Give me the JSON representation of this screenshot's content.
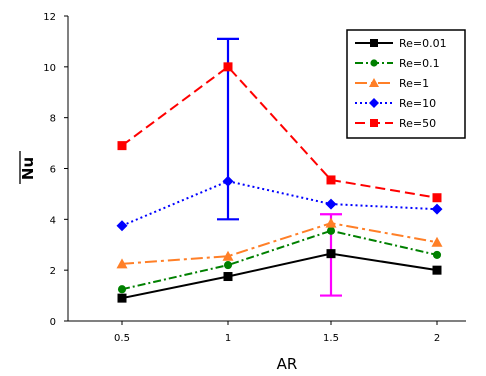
{
  "chart_data": {
    "type": "line",
    "title": "",
    "xlabel": "AR",
    "ylabel": "Nu",
    "x": [
      0.5,
      1,
      1.5,
      2
    ],
    "x_tick_labels": [
      "0.5",
      "1",
      "1.5",
      "2"
    ],
    "ylim": [
      0,
      12
    ],
    "y_ticks": [
      0,
      2,
      4,
      6,
      8,
      10,
      12
    ],
    "grid": false,
    "legend_position": "top-right",
    "series": [
      {
        "name": "Re=0.01",
        "values": [
          0.9,
          1.75,
          2.65,
          2.0
        ],
        "color": "#000000",
        "marker": "square",
        "dash": "solid"
      },
      {
        "name": "Re=0.1",
        "values": [
          1.25,
          2.2,
          3.55,
          2.6
        ],
        "color": "#008000",
        "marker": "circle",
        "dash": "dashdot"
      },
      {
        "name": "Re=1",
        "values": [
          2.25,
          2.55,
          3.85,
          3.1
        ],
        "color": "#ff7f27",
        "marker": "triangle",
        "dash": "longdashdot"
      },
      {
        "name": "Re=10",
        "values": [
          3.75,
          5.5,
          4.6,
          4.4
        ],
        "color": "#0000ff",
        "marker": "diamond",
        "dash": "dotted"
      },
      {
        "name": "Re=50",
        "values": [
          6.9,
          10.0,
          5.55,
          4.85
        ],
        "color": "#ff0000",
        "marker": "square",
        "dash": "dashed"
      }
    ],
    "error_bars": [
      {
        "x": 1,
        "low": 4.0,
        "high": 11.1,
        "color": "#0000ff"
      },
      {
        "x": 1.5,
        "low": 1.0,
        "high": 4.2,
        "color": "#ff00ff"
      }
    ]
  }
}
